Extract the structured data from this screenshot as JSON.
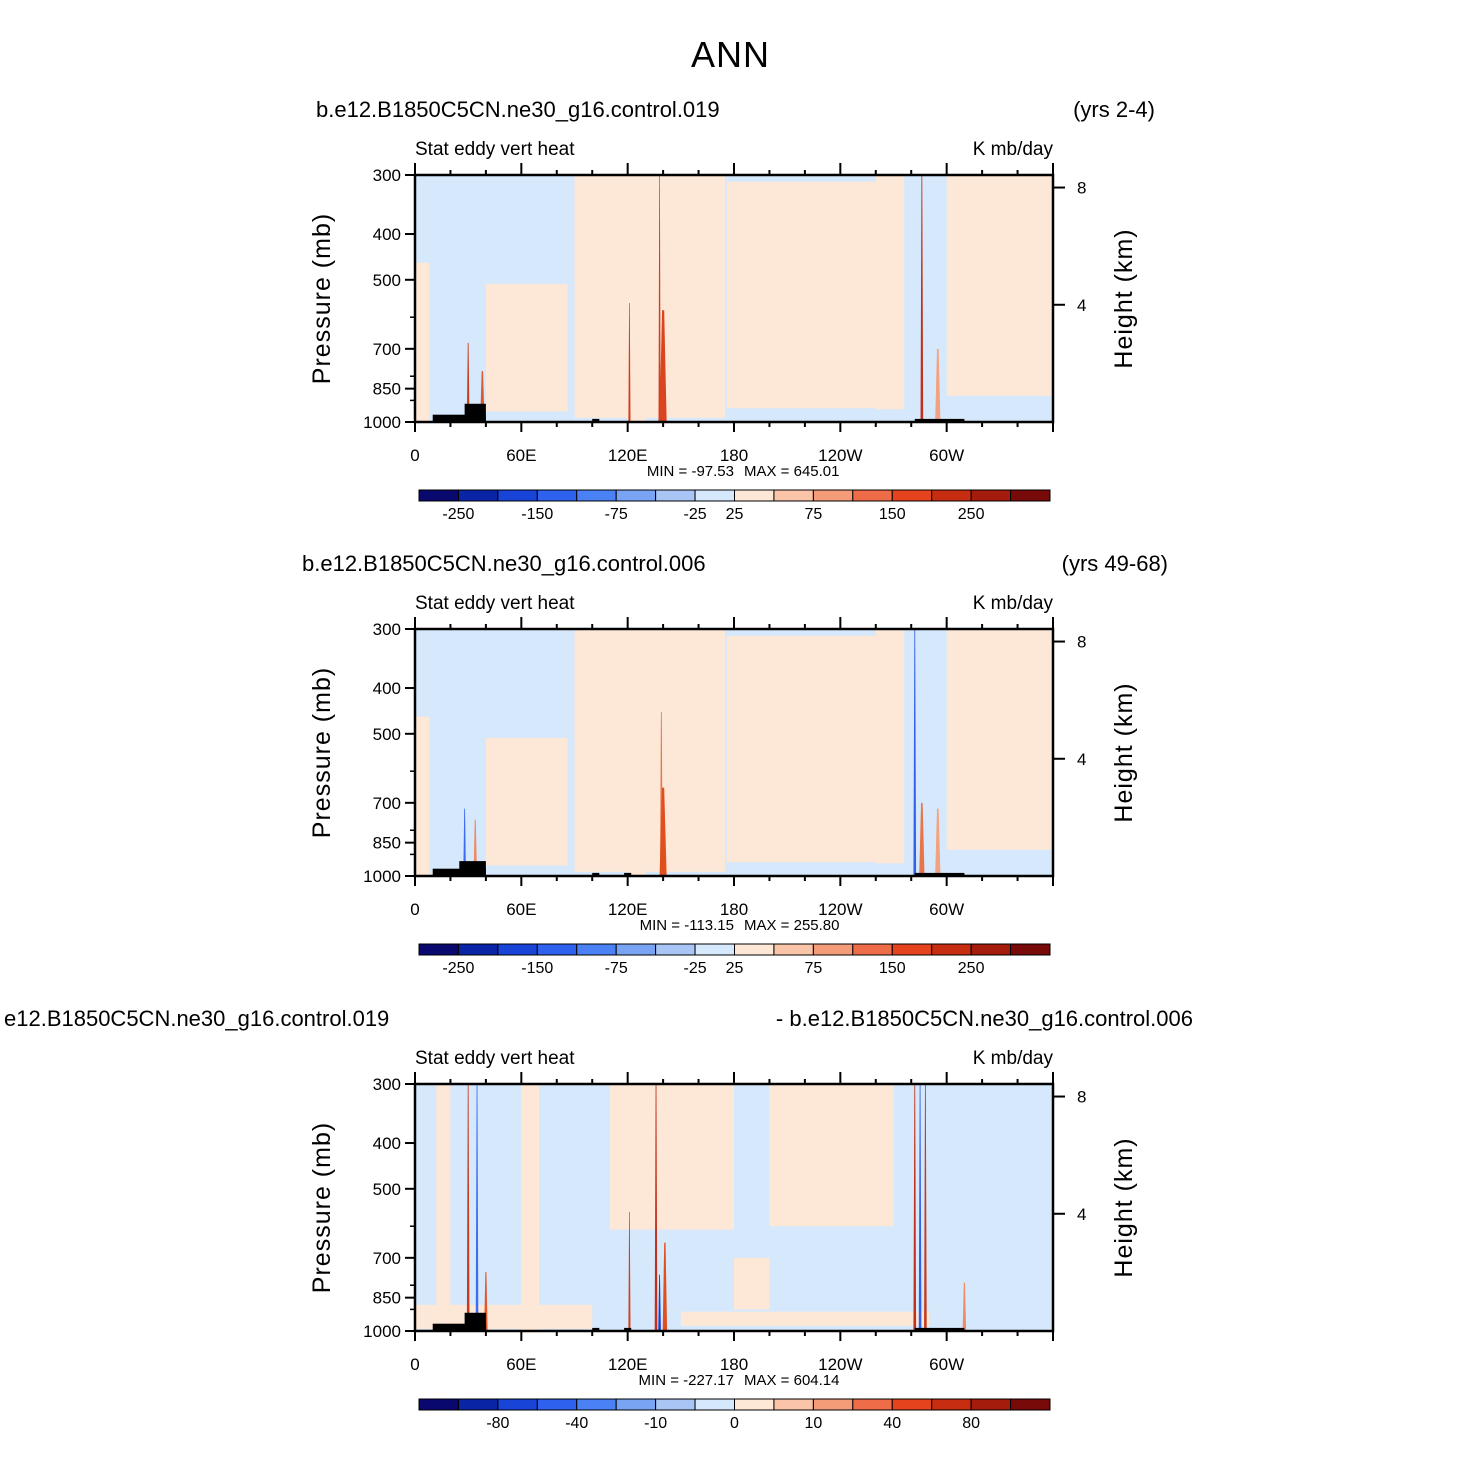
{
  "page_title": "ANN",
  "chart_data": [
    {
      "type": "heatmap",
      "case_title": "b.e12.B1850C5CN.ne30_g16.control.019",
      "years_label": "(yrs 2-4)",
      "variable_label": "Stat  eddy  vert  heat",
      "units_label": "K  mb/day",
      "ylabel": "Pressure  (mb)",
      "ylabel_right": "Height  (km)",
      "y_ticks": [
        "300",
        "400",
        "500",
        "700",
        "850",
        "1000"
      ],
      "y_tick_values": [
        300,
        400,
        500,
        700,
        850,
        1000
      ],
      "right_ticks": [
        "8",
        "4"
      ],
      "right_tick_values_km": [
        8,
        4
      ],
      "x_ticks": [
        "0",
        "60E",
        "120E",
        "180",
        "120W",
        "60W"
      ],
      "x_tick_values_deg": [
        0,
        60,
        120,
        180,
        240,
        300
      ],
      "xlim_deg": [
        0,
        360
      ],
      "ylim_mb": [
        300,
        1000
      ],
      "min_label": "MIN  =  -97.53",
      "max_label": "MAX  =  645.01",
      "colorbar_labels": [
        "-250",
        "-150",
        "-75",
        "-25",
        "25",
        "75",
        "150",
        "250"
      ],
      "streaks": [
        {
          "lon": 30,
          "top_mb": 680,
          "width_deg": 1.5,
          "color": "#c53b1b"
        },
        {
          "lon": 38,
          "top_mb": 780,
          "width_deg": 2.5,
          "color": "#e0582c"
        },
        {
          "lon": 121,
          "top_mb": 560,
          "width_deg": 1.2,
          "color": "#d04020"
        },
        {
          "lon": 138,
          "top_mb": 300,
          "width_deg": 1.2,
          "color": "#d04020"
        },
        {
          "lon": 140,
          "top_mb": 580,
          "width_deg": 4,
          "color": "#d8451e"
        },
        {
          "lon": 286,
          "top_mb": 300,
          "width_deg": 1.5,
          "color": "#c0301b"
        },
        {
          "lon": 295,
          "top_mb": 700,
          "width_deg": 3,
          "color": "#f2a27f"
        }
      ],
      "blocks": [
        {
          "lon0": 10,
          "lon1": 40,
          "top_mb": 965
        },
        {
          "lon0": 28,
          "lon1": 40,
          "top_mb": 915
        },
        {
          "lon0": 100,
          "lon1": 104,
          "top_mb": 985
        },
        {
          "lon0": 282,
          "lon1": 310,
          "top_mb": 985
        }
      ]
    },
    {
      "type": "heatmap",
      "case_title": "b.e12.B1850C5CN.ne30_g16.control.006",
      "years_label": "(yrs 49-68)",
      "variable_label": "Stat  eddy  vert  heat",
      "units_label": "K  mb/day",
      "ylabel": "Pressure  (mb)",
      "ylabel_right": "Height  (km)",
      "y_ticks": [
        "300",
        "400",
        "500",
        "700",
        "850",
        "1000"
      ],
      "y_tick_values": [
        300,
        400,
        500,
        700,
        850,
        1000
      ],
      "right_ticks": [
        "8",
        "4"
      ],
      "right_tick_values_km": [
        8,
        4
      ],
      "x_ticks": [
        "0",
        "60E",
        "120E",
        "180",
        "120W",
        "60W"
      ],
      "x_tick_values_deg": [
        0,
        60,
        120,
        180,
        240,
        300
      ],
      "xlim_deg": [
        0,
        360
      ],
      "ylim_mb": [
        300,
        1000
      ],
      "min_label": "MIN  =  -113.15",
      "max_label": "MAX  =  255.80",
      "colorbar_labels": [
        "-250",
        "-150",
        "-75",
        "-25",
        "25",
        "75",
        "150",
        "250"
      ],
      "streaks": [
        {
          "lon": 28,
          "top_mb": 720,
          "width_deg": 1.5,
          "color": "#3c6cf0"
        },
        {
          "lon": 34,
          "top_mb": 760,
          "width_deg": 2,
          "color": "#f08a63"
        },
        {
          "lon": 139,
          "top_mb": 450,
          "width_deg": 1.5,
          "color": "#e8744a"
        },
        {
          "lon": 140,
          "top_mb": 650,
          "width_deg": 4,
          "color": "#e0501f"
        },
        {
          "lon": 282,
          "top_mb": 300,
          "width_deg": 1.5,
          "color": "#3061e8"
        },
        {
          "lon": 286,
          "top_mb": 700,
          "width_deg": 3,
          "color": "#e8744a"
        },
        {
          "lon": 295,
          "top_mb": 720,
          "width_deg": 3,
          "color": "#f2a27f"
        }
      ],
      "blocks": [
        {
          "lon0": 10,
          "lon1": 40,
          "top_mb": 965
        },
        {
          "lon0": 25,
          "lon1": 40,
          "top_mb": 930
        },
        {
          "lon0": 100,
          "lon1": 104,
          "top_mb": 985
        },
        {
          "lon0": 118,
          "lon1": 122,
          "top_mb": 985
        },
        {
          "lon0": 282,
          "lon1": 310,
          "top_mb": 985
        }
      ]
    },
    {
      "type": "heatmap",
      "case_title": "e12.B1850C5CN.ne30_g16.control.019",
      "years_label": "- b.e12.B1850C5CN.ne30_g16.control.006",
      "variable_label": "Stat  eddy  vert  heat",
      "units_label": "K  mb/day",
      "ylabel": "Pressure  (mb)",
      "ylabel_right": "Height  (km)",
      "y_ticks": [
        "300",
        "400",
        "500",
        "700",
        "850",
        "1000"
      ],
      "y_tick_values": [
        300,
        400,
        500,
        700,
        850,
        1000
      ],
      "right_ticks": [
        "8",
        "4"
      ],
      "right_tick_values_km": [
        8,
        4
      ],
      "x_ticks": [
        "0",
        "60E",
        "120E",
        "180",
        "120W",
        "60W"
      ],
      "x_tick_values_deg": [
        0,
        60,
        120,
        180,
        240,
        300
      ],
      "xlim_deg": [
        0,
        360
      ],
      "ylim_mb": [
        300,
        1000
      ],
      "min_label": "MIN  =  -227.17",
      "max_label": "MAX  =  604.14",
      "colorbar_labels": [
        "-80",
        "-40",
        "-10",
        "0",
        "10",
        "40",
        "80"
      ],
      "streaks": [
        {
          "lon": 30,
          "top_mb": 300,
          "width_deg": 1.5,
          "color": "#c53b1b"
        },
        {
          "lon": 35,
          "top_mb": 300,
          "width_deg": 1.5,
          "color": "#3c6cf0"
        },
        {
          "lon": 40,
          "top_mb": 750,
          "width_deg": 2,
          "color": "#e0582c"
        },
        {
          "lon": 121,
          "top_mb": 560,
          "width_deg": 1.2,
          "color": "#d04020"
        },
        {
          "lon": 136,
          "top_mb": 300,
          "width_deg": 1.5,
          "color": "#c0301b"
        },
        {
          "lon": 138,
          "top_mb": 760,
          "width_deg": 1.5,
          "color": "#1a3fd0"
        },
        {
          "lon": 141,
          "top_mb": 650,
          "width_deg": 2.5,
          "color": "#e0501f"
        },
        {
          "lon": 282,
          "top_mb": 300,
          "width_deg": 1.5,
          "color": "#c0301b"
        },
        {
          "lon": 285,
          "top_mb": 300,
          "width_deg": 1.5,
          "color": "#3061e8"
        },
        {
          "lon": 288,
          "top_mb": 300,
          "width_deg": 1.5,
          "color": "#c53b1b"
        },
        {
          "lon": 310,
          "top_mb": 790,
          "width_deg": 2,
          "color": "#f08a63"
        }
      ],
      "blocks": [
        {
          "lon0": 10,
          "lon1": 40,
          "top_mb": 965
        },
        {
          "lon0": 28,
          "lon1": 40,
          "top_mb": 915
        },
        {
          "lon0": 100,
          "lon1": 104,
          "top_mb": 985
        },
        {
          "lon0": 118,
          "lon1": 122,
          "top_mb": 985
        },
        {
          "lon0": 282,
          "lon1": 310,
          "top_mb": 985
        }
      ]
    }
  ],
  "colors": {
    "neg_bg": "#d6e9fc",
    "pos_bg": "#fde7d7",
    "palette": [
      "#08086e",
      "#0a24a6",
      "#1844d8",
      "#2e62ee",
      "#4a82f5",
      "#79a3f3",
      "#a8c5f5",
      "#d6e9fc",
      "#fde7d7",
      "#f9c4a8",
      "#f49b77",
      "#ee6c48",
      "#e5431d",
      "#c72d10",
      "#a31c0c",
      "#780a0a"
    ]
  }
}
